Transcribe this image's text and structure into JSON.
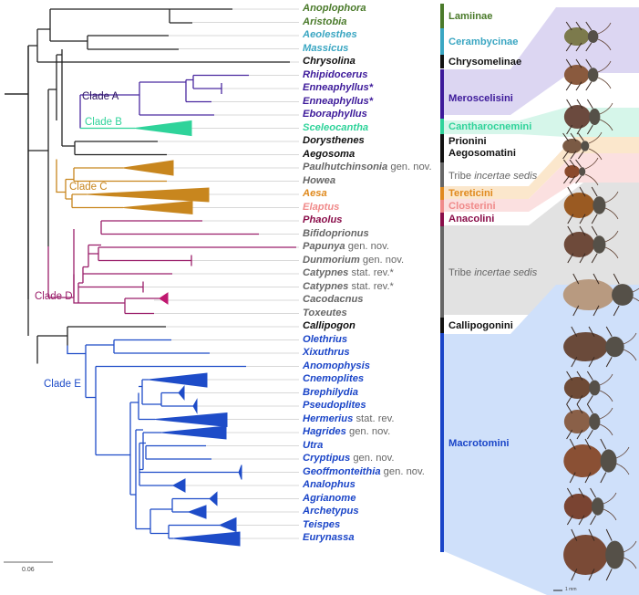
{
  "figure": {
    "type": "phylogenetic-tree",
    "scale_bar_label": "0.06",
    "specimen_scale_label": "1 mm"
  },
  "colors": {
    "lamiinae": "#4a7a2a",
    "cerambycinae": "#3aa6c2",
    "black": "#111111",
    "meroscelisini": "#3d1a9a",
    "cantharocnemini": "#2fd39a",
    "incertae": "#666666",
    "tereticini": "#e08a1e",
    "closterini": "#f08a8a",
    "anacolini": "#8a0e4a",
    "macrotomini": "#1a45c8",
    "cladeA": "#4b2aa0",
    "cladeB": "#2fd39a",
    "cladeC": "#c8861e",
    "cladeD": "#9a1e6a",
    "cladeE": "#1e4cc8"
  },
  "clades": [
    {
      "id": "A",
      "label": "Clade A"
    },
    {
      "id": "B",
      "label": "Clade B"
    },
    {
      "id": "C",
      "label": "Clade C"
    },
    {
      "id": "D",
      "label": "Clade D"
    },
    {
      "id": "E",
      "label": "Clade E"
    }
  ],
  "taxa": [
    {
      "name": "Anoplophora",
      "suffix": "",
      "color": "lamiinae"
    },
    {
      "name": "Aristobia",
      "suffix": "",
      "color": "lamiinae"
    },
    {
      "name": "Aeolesthes",
      "suffix": "",
      "color": "cerambycinae"
    },
    {
      "name": "Massicus",
      "suffix": "",
      "color": "cerambycinae"
    },
    {
      "name": "Chrysolina",
      "suffix": "",
      "color": "black"
    },
    {
      "name": "Rhipidocerus",
      "suffix": "",
      "color": "meroscelisini"
    },
    {
      "name": "Enneaphyllus*",
      "suffix": "",
      "color": "meroscelisini"
    },
    {
      "name": "Enneaphyllus*",
      "suffix": "",
      "color": "meroscelisini"
    },
    {
      "name": "Eboraphyllus",
      "suffix": "",
      "color": "meroscelisini"
    },
    {
      "name": "Sceleocantha",
      "suffix": "",
      "color": "cantharocnemini"
    },
    {
      "name": "Dorysthenes",
      "suffix": "",
      "color": "black"
    },
    {
      "name": "Aegosoma",
      "suffix": "",
      "color": "black"
    },
    {
      "name": "Paulhutchinsonia",
      "suffix": " gen. nov.",
      "color": "incertae"
    },
    {
      "name": "Howea",
      "suffix": "",
      "color": "incertae"
    },
    {
      "name": "Aesa",
      "suffix": "",
      "color": "tereticini"
    },
    {
      "name": "Elaptus",
      "suffix": "",
      "color": "closterini"
    },
    {
      "name": "Phaolus",
      "suffix": "",
      "color": "anacolini"
    },
    {
      "name": "Bifidoprionus",
      "suffix": "",
      "color": "incertae"
    },
    {
      "name": "Papunya",
      "suffix": " gen. nov.",
      "color": "incertae"
    },
    {
      "name": "Dunmorium",
      "suffix": " gen. nov.",
      "color": "incertae"
    },
    {
      "name": "Catypnes",
      "suffix": " stat. rev.*",
      "color": "incertae"
    },
    {
      "name": "Catypnes",
      "suffix": " stat. rev.*",
      "color": "incertae"
    },
    {
      "name": "Cacodacnus",
      "suffix": "",
      "color": "incertae"
    },
    {
      "name": "Toxeutes",
      "suffix": "",
      "color": "incertae"
    },
    {
      "name": "Callipogon",
      "suffix": "",
      "color": "black"
    },
    {
      "name": "Olethrius",
      "suffix": "",
      "color": "macrotomini"
    },
    {
      "name": "Xixuthrus",
      "suffix": "",
      "color": "macrotomini"
    },
    {
      "name": "Anomophysis",
      "suffix": "",
      "color": "macrotomini"
    },
    {
      "name": "Cnemoplites",
      "suffix": "",
      "color": "macrotomini"
    },
    {
      "name": "Brephilydia",
      "suffix": "",
      "color": "macrotomini"
    },
    {
      "name": "Pseudoplites",
      "suffix": "",
      "color": "macrotomini"
    },
    {
      "name": "Hermerius",
      "suffix": " stat. rev.",
      "color": "macrotomini"
    },
    {
      "name": "Hagrides",
      "suffix": " gen. nov.",
      "color": "macrotomini"
    },
    {
      "name": "Utra",
      "suffix": "",
      "color": "macrotomini"
    },
    {
      "name": "Cryptipus",
      "suffix": " gen. nov.",
      "color": "macrotomini"
    },
    {
      "name": "Geoffmonteithia",
      "suffix": " gen. nov.",
      "color": "macrotomini"
    },
    {
      "name": "Analophus",
      "suffix": "",
      "color": "macrotomini"
    },
    {
      "name": "Agrianome",
      "suffix": "",
      "color": "macrotomini"
    },
    {
      "name": "Archetypus",
      "suffix": "",
      "color": "macrotomini"
    },
    {
      "name": "Teispes",
      "suffix": "",
      "color": "macrotomini"
    },
    {
      "name": "Eurynassa",
      "suffix": "",
      "color": "macrotomini"
    }
  ],
  "groups": [
    {
      "label": "Lamiinae",
      "italic": "",
      "color": "lamiinae",
      "bg": ""
    },
    {
      "label": "Cerambycinae",
      "italic": "",
      "color": "cerambycinae",
      "bg": ""
    },
    {
      "label": "Chrysomelinae",
      "italic": "",
      "color": "black",
      "bg": ""
    },
    {
      "label": "Meroscelisini",
      "italic": "",
      "color": "meroscelisini",
      "bg": "#d9d2f0"
    },
    {
      "label": "Cantharocnemini",
      "italic": "",
      "color": "cantharocnemini",
      "bg": "#d2f5e6"
    },
    {
      "label": "Prionini",
      "label2": "Aegosomatini",
      "italic": "",
      "color": "black",
      "bg": ""
    },
    {
      "label": "Tribe ",
      "italic": "incertae sedis",
      "color": "incertae",
      "bg": ""
    },
    {
      "label": "Tereticini",
      "italic": "",
      "color": "tereticini",
      "bg": "#fbe5c8"
    },
    {
      "label": "Closterini",
      "italic": "",
      "color": "closterini",
      "bg": "#fbdcdc"
    },
    {
      "label": "Anacolini",
      "italic": "",
      "color": "anacolini",
      "bg": ""
    },
    {
      "label": "Tribe ",
      "italic": "incertae sedis",
      "color": "incertae",
      "bg": "#e0e0e0"
    },
    {
      "label": "Callipogonini",
      "italic": "",
      "color": "black",
      "bg": ""
    },
    {
      "label": "Macrotomini",
      "italic": "",
      "color": "macrotomini",
      "bg": "#cfe0fa"
    }
  ]
}
